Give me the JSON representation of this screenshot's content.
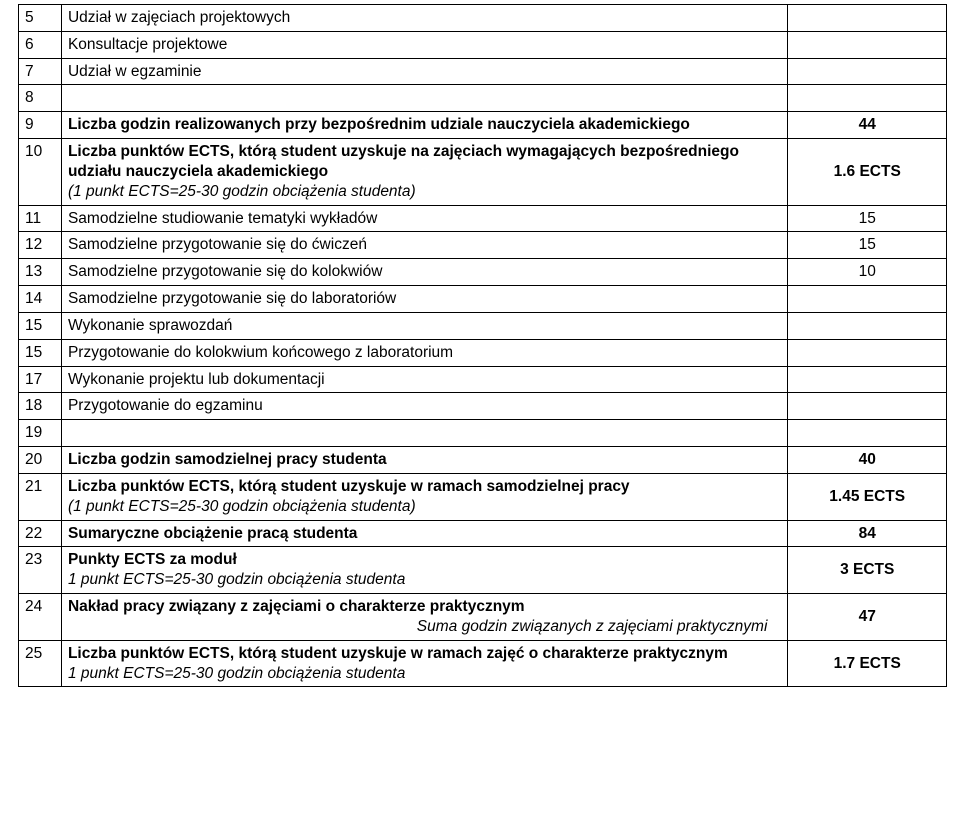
{
  "rows": {
    "r5": {
      "n": "5",
      "desc": "Udział w zajęciach projektowych",
      "val": ""
    },
    "r6": {
      "n": "6",
      "desc": "Konsultacje projektowe",
      "val": ""
    },
    "r7": {
      "n": "7",
      "desc": "Udział w egzaminie",
      "val": ""
    },
    "r8": {
      "n": "8",
      "desc": "",
      "val": ""
    },
    "r9": {
      "n": "9",
      "desc": "Liczba godzin realizowanych przy bezpośrednim udziale nauczyciela akademickiego",
      "val": "44"
    },
    "r10": {
      "n": "10",
      "line1": "Liczba punktów ECTS, którą student uzyskuje na zajęciach wymagających bezpośredniego udziału nauczyciela akademickiego",
      "line2": "(1 punkt ECTS=25-30 godzin obciążenia studenta)",
      "val": "1.6 ECTS"
    },
    "r11": {
      "n": "11",
      "desc": "Samodzielne studiowanie tematyki wykładów",
      "val": "15"
    },
    "r12": {
      "n": "12",
      "desc": "Samodzielne przygotowanie się do ćwiczeń",
      "val": "15"
    },
    "r13": {
      "n": "13",
      "desc": "Samodzielne przygotowanie się do kolokwiów",
      "val": "10"
    },
    "r14": {
      "n": "14",
      "desc": "Samodzielne przygotowanie się do laboratoriów",
      "val": ""
    },
    "r15a": {
      "n": "15",
      "desc": "Wykonanie sprawozdań",
      "val": ""
    },
    "r15b": {
      "n": "15",
      "desc": "Przygotowanie do kolokwium końcowego z laboratorium",
      "val": ""
    },
    "r17": {
      "n": "17",
      "desc": "Wykonanie projektu lub dokumentacji",
      "val": ""
    },
    "r18": {
      "n": "18",
      "desc": "Przygotowanie do egzaminu",
      "val": ""
    },
    "r19": {
      "n": "19",
      "desc": "",
      "val": ""
    },
    "r20": {
      "n": "20",
      "desc": "Liczba godzin samodzielnej pracy studenta",
      "val": "40"
    },
    "r21": {
      "n": "21",
      "line1": "Liczba punktów ECTS, którą student uzyskuje w ramach samodzielnej pracy",
      "line2": "(1 punkt ECTS=25-30 godzin obciążenia studenta)",
      "val": "1.45 ECTS"
    },
    "r22": {
      "n": "22",
      "desc": "Sumaryczne obciążenie pracą studenta",
      "val": "84"
    },
    "r23": {
      "n": "23",
      "line1": "Punkty ECTS za moduł",
      "line2": "1 punkt ECTS=25-30 godzin obciążenia studenta",
      "val": "3 ECTS"
    },
    "r24": {
      "n": "24",
      "line1": "Nakład pracy związany z zajęciami o charakterze praktycznym",
      "line2": "Suma godzin związanych z zajęciami praktycznymi",
      "val": "47"
    },
    "r25": {
      "n": "25",
      "line1": "Liczba punktów ECTS, którą student uzyskuje w ramach zajęć o charakterze praktycznym",
      "line2": "1 punkt ECTS=25-30 godzin obciążenia studenta",
      "val": "1.7 ECTS"
    }
  }
}
